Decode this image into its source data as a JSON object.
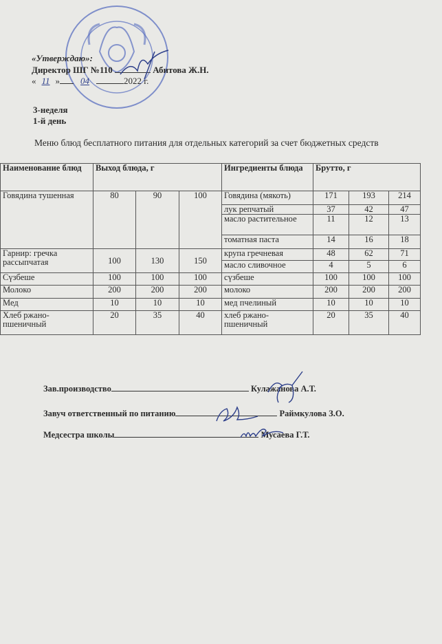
{
  "approval": {
    "approved_label": "«Утверждаю»:",
    "director_line": "Директор ШГ №110",
    "director_name": "Абитова Ж.Н.",
    "date_day": "11",
    "date_month": "04",
    "date_year": "2022 г.",
    "stamp_text": "BILIM BASQARMASYNYŃ MEMLEKETTIK ALMATY QALASY"
  },
  "week": "3-неделя",
  "day": "1-й день",
  "menu_title": "Меню блюд бесплатного питания для отдельных категорий за счет бюджетных средств",
  "table": {
    "headers": {
      "dish": "Наименование блюд",
      "yield": "Выход блюда, г",
      "ingredients": "Ингредиенты блюда",
      "gross": "Брутто, г"
    },
    "dishes": [
      {
        "name": "Говядина тушенная",
        "yield": [
          "80",
          "90",
          "100"
        ],
        "ingredients": [
          {
            "name": "Говядина (мякоть)",
            "gross": [
              "171",
              "193",
              "214"
            ]
          },
          {
            "name": "лук репчатый",
            "gross": [
              "37",
              "42",
              "47"
            ]
          },
          {
            "name": "масло растительное",
            "gross": [
              "11",
              "12",
              "13"
            ]
          },
          {
            "name": "томатная паста",
            "gross": [
              "14",
              "16",
              "18"
            ]
          }
        ]
      },
      {
        "name": "Гарнир: гречка рассыпчатая",
        "yield": [
          "100",
          "130",
          "150"
        ],
        "ingredients": [
          {
            "name": "крупа гречневая",
            "gross": [
              "48",
              "62",
              "71"
            ]
          },
          {
            "name": "масло сливочное",
            "gross": [
              "4",
              "5",
              "6"
            ]
          }
        ]
      },
      {
        "name": "Сүзбеше",
        "yield": [
          "100",
          "100",
          "100"
        ],
        "ingredients": [
          {
            "name": "сүзбеше",
            "gross": [
              "100",
              "100",
              "100"
            ]
          }
        ]
      },
      {
        "name": "Молоко",
        "yield": [
          "200",
          "200",
          "200"
        ],
        "ingredients": [
          {
            "name": "молоко",
            "gross": [
              "200",
              "200",
              "200"
            ]
          }
        ]
      },
      {
        "name": "Мед",
        "yield": [
          "10",
          "10",
          "10"
        ],
        "ingredients": [
          {
            "name": "мед пчелиный",
            "gross": [
              "10",
              "10",
              "10"
            ]
          }
        ]
      },
      {
        "name": "Хлеб ржано-пшеничный",
        "yield": [
          "20",
          "35",
          "40"
        ],
        "ingredients": [
          {
            "name": "хлеб ржано-пшеничный",
            "gross": [
              "20",
              "35",
              "40"
            ]
          }
        ]
      }
    ]
  },
  "signatures": [
    {
      "role": "Зав.производство",
      "name": "Кулажанова А.Т."
    },
    {
      "role": "Завуч  ответственный  по  питанию",
      "name": "Раймкулова З.О."
    },
    {
      "role": "Медсестра  школы",
      "name": "Мусаева Г.Т."
    }
  ],
  "colors": {
    "ink": "#2d3f8a",
    "stamp": "#4a5fb0",
    "paper": "#e9e9e6"
  }
}
